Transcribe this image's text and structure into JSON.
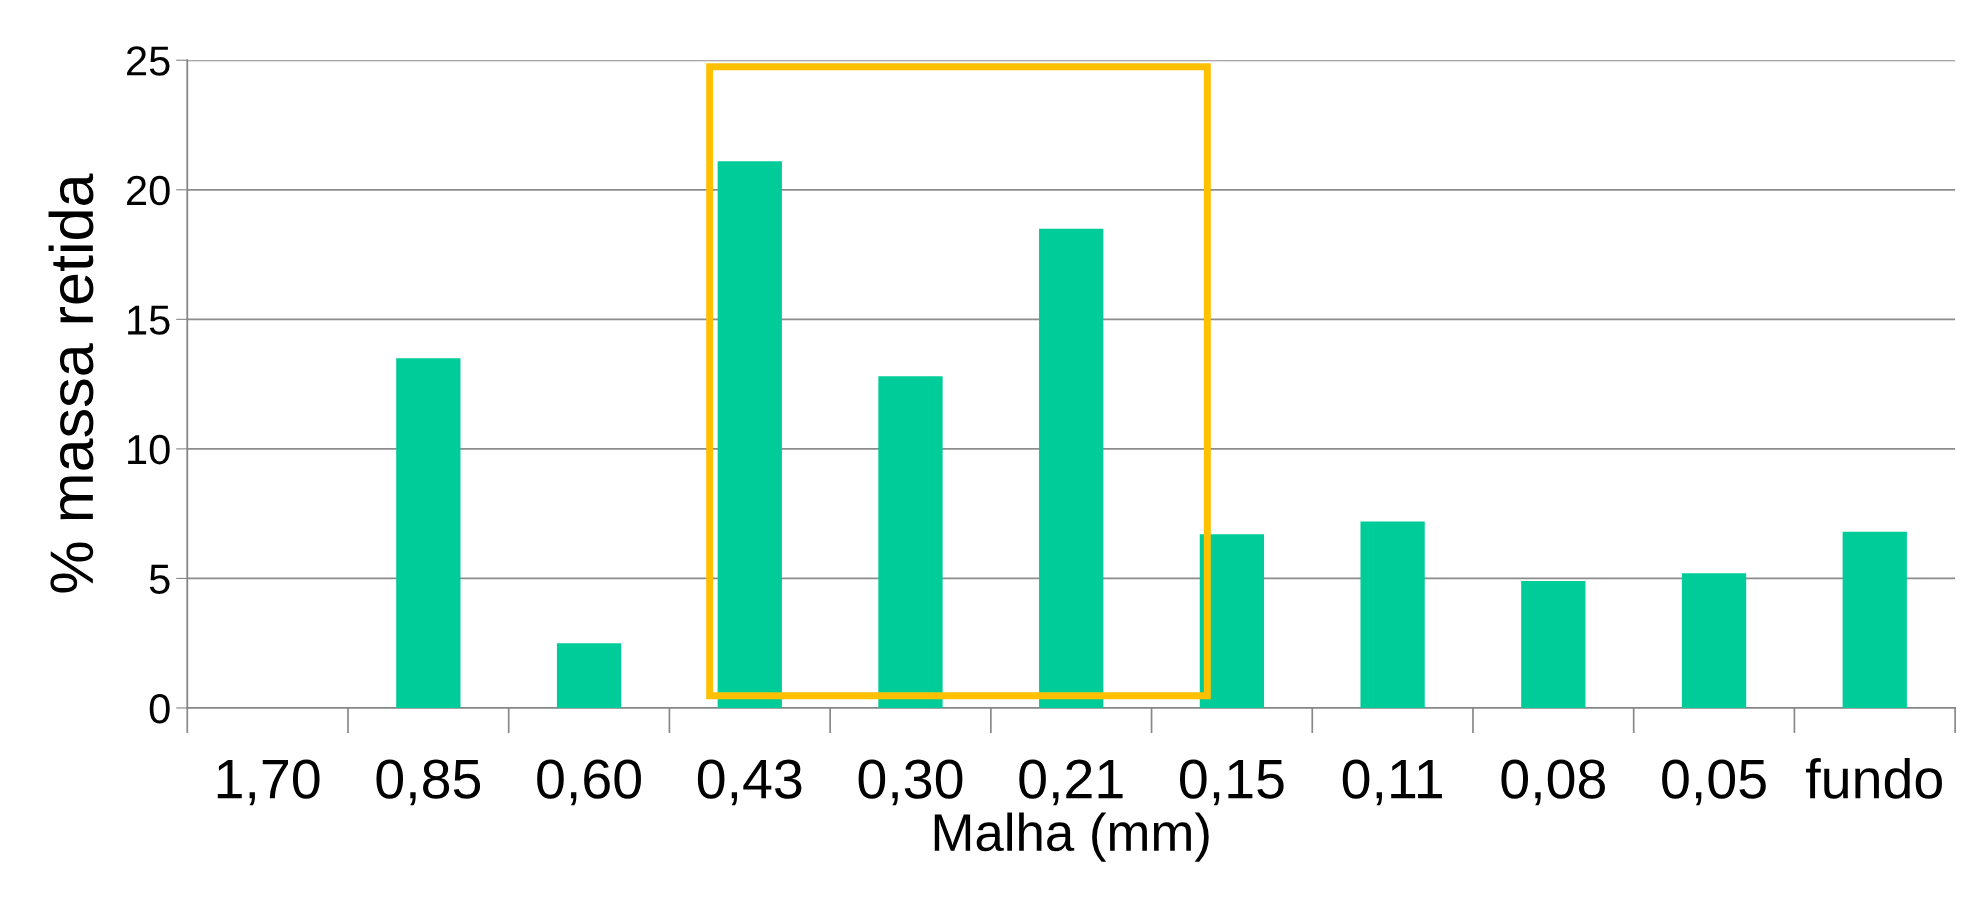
{
  "chart_data": {
    "type": "bar",
    "xlabel": "Malha (mm)",
    "ylabel": "% massa retida",
    "categories": [
      "1,70",
      "0,85",
      "0,60",
      "0,43",
      "0,30",
      "0,21",
      "0,15",
      "0,11",
      "0,08",
      "0,05",
      "fundo"
    ],
    "values": [
      0,
      13.5,
      2.5,
      21.1,
      12.8,
      18.5,
      6.7,
      7.2,
      4.9,
      5.2,
      6.8
    ],
    "color": "#00cc99",
    "ylim": [
      0,
      25
    ],
    "yticks": [
      0,
      5,
      10,
      15,
      20,
      25
    ],
    "grid": "y"
  }
}
